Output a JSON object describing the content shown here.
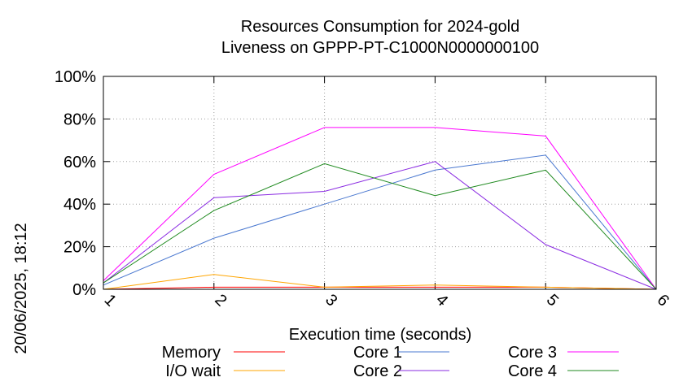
{
  "side_label": "20/06/2025, 18:12",
  "chart_data": {
    "type": "line",
    "title": [
      "Resources Consumption for 2024-gold",
      "Liveness on GPPP-PT-C1000N0000000100"
    ],
    "xlabel": "Execution time (seconds)",
    "ylabel": "",
    "x": [
      1,
      2,
      3,
      4,
      5,
      6
    ],
    "x_ticks": [
      "1",
      "2",
      "3",
      "4",
      "5",
      "6"
    ],
    "xlim": [
      1,
      6
    ],
    "ylim": [
      0,
      100
    ],
    "y_ticks": [
      0,
      20,
      40,
      60,
      80,
      100
    ],
    "y_tick_labels": [
      "0%",
      "20%",
      "40%",
      "60%",
      "80%",
      "100%"
    ],
    "grid": true,
    "legend_position": "bottom",
    "series": [
      {
        "name": "Memory",
        "color": "#ff0000",
        "values": [
          0,
          1,
          1,
          1,
          1,
          0
        ]
      },
      {
        "name": "I/O wait",
        "color": "#ffa500",
        "values": [
          0,
          7,
          1,
          2,
          1,
          0
        ]
      },
      {
        "name": "Core 1",
        "color": "#4a78d0",
        "values": [
          2,
          24,
          40,
          56,
          63,
          0
        ]
      },
      {
        "name": "Core 2",
        "color": "#8a2be2",
        "values": [
          3,
          43,
          46,
          60,
          21,
          0
        ]
      },
      {
        "name": "Core 3",
        "color": "#ff00ff",
        "values": [
          4,
          54,
          76,
          76,
          72,
          0
        ]
      },
      {
        "name": "Core 4",
        "color": "#1f8a1f",
        "values": [
          3,
          37,
          59,
          44,
          56,
          0
        ]
      }
    ]
  }
}
